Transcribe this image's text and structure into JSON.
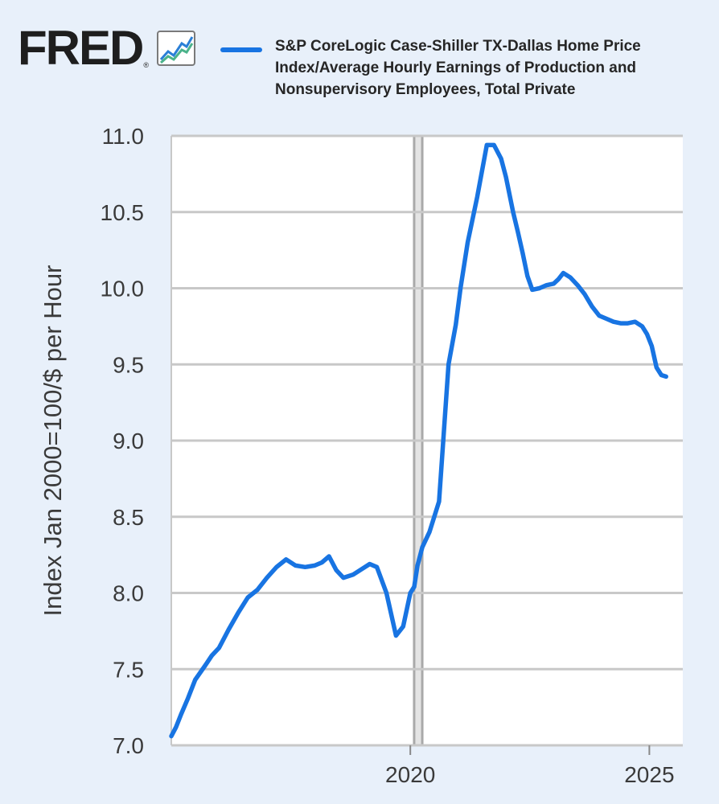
{
  "header": {
    "logo_text": "FRED",
    "logo_reg": "®",
    "logo_icon": "chart-line-icon"
  },
  "colors": {
    "series": "#1874e2",
    "background": "#e8f0fa",
    "plot_bg": "#ffffff",
    "grid": "#c8c8c8",
    "recession": "#a9a9a9"
  },
  "chart_data": {
    "type": "line",
    "title": "",
    "ylabel": "Index Jan 2000=100/$ per Hour",
    "xlabel": "",
    "ylim": [
      7.0,
      11.0
    ],
    "yticks": [
      "7.0",
      "7.5",
      "8.0",
      "8.5",
      "9.0",
      "9.5",
      "10.0",
      "10.5",
      "11.0"
    ],
    "xlim": [
      2015.0,
      2025.7
    ],
    "xticks": [
      {
        "label": "2020",
        "value": 2020
      },
      {
        "label": "2025",
        "value": 2025
      }
    ],
    "grid": true,
    "legend_position": "top",
    "recessions": [
      {
        "start": 2020.08,
        "end": 2020.25
      }
    ],
    "series": [
      {
        "name": "S&P CoreLogic Case-Shiller TX-Dallas Home Price Index/Average Hourly Earnings of Production and Nonsupervisory Employees, Total Private",
        "x": [
          2015.0,
          2015.1,
          2015.2,
          2015.35,
          2015.5,
          2015.7,
          2015.85,
          2016.0,
          2016.2,
          2016.4,
          2016.6,
          2016.8,
          2017.0,
          2017.2,
          2017.4,
          2017.6,
          2017.8,
          2018.0,
          2018.15,
          2018.3,
          2018.45,
          2018.6,
          2018.8,
          2019.0,
          2019.15,
          2019.3,
          2019.5,
          2019.7,
          2019.85,
          2020.0,
          2020.08,
          2020.15,
          2020.25,
          2020.4,
          2020.6,
          2020.8,
          2020.95,
          2021.05,
          2021.2,
          2021.4,
          2021.6,
          2021.75,
          2021.9,
          2022.0,
          2022.15,
          2022.25,
          2022.35,
          2022.45,
          2022.55,
          2022.7,
          2022.85,
          2023.0,
          2023.1,
          2023.2,
          2023.35,
          2023.5,
          2023.65,
          2023.8,
          2023.95,
          2024.1,
          2024.25,
          2024.4,
          2024.55,
          2024.7,
          2024.85,
          2024.95,
          2025.05,
          2025.15,
          2025.25,
          2025.35
        ],
        "values": [
          7.06,
          7.12,
          7.2,
          7.31,
          7.43,
          7.52,
          7.59,
          7.64,
          7.76,
          7.87,
          7.97,
          8.02,
          8.1,
          8.17,
          8.22,
          8.18,
          8.17,
          8.18,
          8.2,
          8.24,
          8.15,
          8.1,
          8.12,
          8.16,
          8.19,
          8.17,
          8.0,
          7.72,
          7.78,
          8.0,
          8.04,
          8.18,
          8.3,
          8.4,
          8.6,
          9.5,
          9.76,
          10.0,
          10.3,
          10.6,
          10.94,
          10.94,
          10.85,
          10.73,
          10.5,
          10.37,
          10.23,
          10.08,
          9.99,
          10.0,
          10.02,
          10.03,
          10.06,
          10.1,
          10.07,
          10.02,
          9.96,
          9.88,
          9.82,
          9.8,
          9.78,
          9.77,
          9.77,
          9.78,
          9.75,
          9.7,
          9.62,
          9.48,
          9.43,
          9.42
        ]
      }
    ]
  }
}
